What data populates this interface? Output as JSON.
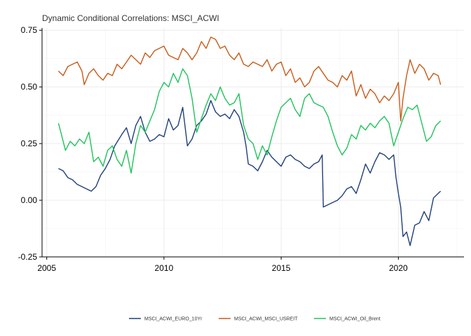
{
  "chart_data": {
    "type": "line",
    "title": "Dynamic Conditional Correlations: MSCI_ACWI",
    "xlabel": "",
    "ylabel": "",
    "xlim": [
      2004.8,
      2022.8
    ],
    "ylim": [
      -0.25,
      0.76
    ],
    "x_ticks": [
      2005,
      2010,
      2015,
      2020
    ],
    "x_tick_labels": [
      "2005",
      "2010",
      "2015",
      "2020"
    ],
    "y_ticks": [
      -0.25,
      0.0,
      0.25,
      0.5,
      0.75
    ],
    "y_tick_labels": [
      "-0.25",
      "0.00",
      "0.25",
      "0.50",
      "0.75"
    ],
    "grid": true,
    "legend_position": "bottom",
    "series": [
      {
        "name": "MSCI_ACWI_EURO_10Yr",
        "color": "#1f3f7a",
        "x": [
          2005.5,
          2005.7,
          2005.9,
          2006.1,
          2006.3,
          2006.5,
          2006.7,
          2006.9,
          2007.1,
          2007.3,
          2007.5,
          2007.7,
          2007.9,
          2008.2,
          2008.4,
          2008.6,
          2008.8,
          2009.0,
          2009.2,
          2009.4,
          2009.6,
          2009.8,
          2010.0,
          2010.2,
          2010.4,
          2010.6,
          2010.8,
          2011.0,
          2011.2,
          2011.4,
          2011.6,
          2011.8,
          2012.0,
          2012.2,
          2012.4,
          2012.6,
          2012.8,
          2013.0,
          2013.2,
          2013.4,
          2013.5,
          2013.6,
          2013.8,
          2014.0,
          2014.2,
          2014.4,
          2014.6,
          2014.8,
          2015.0,
          2015.2,
          2015.4,
          2015.6,
          2015.8,
          2016.0,
          2016.2,
          2016.4,
          2016.6,
          2016.75,
          2016.8,
          2017.0,
          2017.2,
          2017.4,
          2017.6,
          2017.8,
          2018.0,
          2018.2,
          2018.4,
          2018.6,
          2018.8,
          2019.0,
          2019.2,
          2019.4,
          2019.6,
          2019.8,
          2019.9,
          2020.0,
          2020.1,
          2020.2,
          2020.35,
          2020.5,
          2020.7,
          2020.9,
          2021.1,
          2021.3,
          2021.5,
          2021.7,
          2021.8
        ],
        "values": [
          0.14,
          0.13,
          0.1,
          0.09,
          0.07,
          0.06,
          0.05,
          0.04,
          0.06,
          0.11,
          0.14,
          0.18,
          0.24,
          0.29,
          0.32,
          0.25,
          0.33,
          0.37,
          0.3,
          0.26,
          0.27,
          0.29,
          0.28,
          0.36,
          0.31,
          0.33,
          0.41,
          0.24,
          0.27,
          0.33,
          0.35,
          0.38,
          0.44,
          0.39,
          0.37,
          0.38,
          0.36,
          0.4,
          0.37,
          0.3,
          0.24,
          0.16,
          0.15,
          0.13,
          0.17,
          0.22,
          0.19,
          0.17,
          0.15,
          0.19,
          0.2,
          0.18,
          0.17,
          0.15,
          0.14,
          0.16,
          0.17,
          0.2,
          -0.03,
          -0.02,
          -0.01,
          0.0,
          0.02,
          0.05,
          0.06,
          0.03,
          0.09,
          0.16,
          0.12,
          0.17,
          0.21,
          0.2,
          0.18,
          0.2,
          0.1,
          0.03,
          -0.03,
          -0.16,
          -0.14,
          -0.2,
          -0.11,
          -0.1,
          -0.05,
          -0.09,
          0.01,
          0.03,
          0.04
        ]
      },
      {
        "name": "MSCI_ACWI_MSCI_USREIT",
        "color": "#c85a18",
        "x": [
          2005.5,
          2005.7,
          2005.9,
          2006.1,
          2006.3,
          2006.5,
          2006.6,
          2006.8,
          2007.0,
          2007.2,
          2007.4,
          2007.6,
          2007.8,
          2008.0,
          2008.2,
          2008.4,
          2008.6,
          2008.8,
          2009.0,
          2009.2,
          2009.4,
          2009.6,
          2009.8,
          2010.0,
          2010.2,
          2010.4,
          2010.6,
          2010.8,
          2011.0,
          2011.2,
          2011.4,
          2011.6,
          2011.8,
          2012.0,
          2012.2,
          2012.4,
          2012.6,
          2012.8,
          2013.0,
          2013.2,
          2013.4,
          2013.6,
          2013.8,
          2014.0,
          2014.2,
          2014.4,
          2014.6,
          2014.8,
          2015.0,
          2015.2,
          2015.4,
          2015.6,
          2015.8,
          2016.0,
          2016.2,
          2016.4,
          2016.6,
          2016.8,
          2017.0,
          2017.2,
          2017.4,
          2017.6,
          2017.8,
          2018.0,
          2018.2,
          2018.4,
          2018.6,
          2018.8,
          2019.0,
          2019.2,
          2019.4,
          2019.6,
          2019.8,
          2020.0,
          2020.1,
          2020.2,
          2020.35,
          2020.5,
          2020.7,
          2020.9,
          2021.1,
          2021.3,
          2021.5,
          2021.7,
          2021.8
        ],
        "values": [
          0.57,
          0.55,
          0.59,
          0.6,
          0.61,
          0.57,
          0.51,
          0.56,
          0.58,
          0.55,
          0.53,
          0.56,
          0.55,
          0.6,
          0.58,
          0.61,
          0.64,
          0.62,
          0.6,
          0.65,
          0.63,
          0.66,
          0.67,
          0.68,
          0.64,
          0.63,
          0.62,
          0.67,
          0.65,
          0.62,
          0.65,
          0.7,
          0.67,
          0.72,
          0.71,
          0.67,
          0.68,
          0.64,
          0.62,
          0.65,
          0.6,
          0.59,
          0.61,
          0.6,
          0.59,
          0.62,
          0.57,
          0.6,
          0.61,
          0.55,
          0.58,
          0.52,
          0.54,
          0.5,
          0.52,
          0.57,
          0.59,
          0.56,
          0.53,
          0.52,
          0.5,
          0.55,
          0.53,
          0.57,
          0.46,
          0.51,
          0.45,
          0.49,
          0.47,
          0.43,
          0.46,
          0.44,
          0.47,
          0.52,
          0.35,
          0.45,
          0.55,
          0.62,
          0.56,
          0.6,
          0.58,
          0.53,
          0.56,
          0.55,
          0.51
        ]
      },
      {
        "name": "MSCI_ACWI_Oil_Brent",
        "color": "#1fc35a",
        "x": [
          2005.5,
          2005.6,
          2005.8,
          2006.0,
          2006.2,
          2006.4,
          2006.6,
          2006.8,
          2007.0,
          2007.2,
          2007.4,
          2007.6,
          2007.8,
          2008.0,
          2008.2,
          2008.4,
          2008.6,
          2008.8,
          2009.0,
          2009.2,
          2009.4,
          2009.6,
          2009.8,
          2010.0,
          2010.2,
          2010.4,
          2010.6,
          2010.8,
          2011.0,
          2011.2,
          2011.4,
          2011.6,
          2011.8,
          2012.0,
          2012.2,
          2012.4,
          2012.6,
          2012.8,
          2013.0,
          2013.2,
          2013.4,
          2013.6,
          2013.8,
          2014.0,
          2014.2,
          2014.4,
          2014.6,
          2014.8,
          2015.0,
          2015.2,
          2015.4,
          2015.6,
          2015.8,
          2016.0,
          2016.2,
          2016.4,
          2016.6,
          2016.8,
          2017.0,
          2017.2,
          2017.4,
          2017.6,
          2017.8,
          2018.0,
          2018.2,
          2018.4,
          2018.6,
          2018.8,
          2019.0,
          2019.2,
          2019.4,
          2019.6,
          2019.8,
          2020.0,
          2020.2,
          2020.4,
          2020.6,
          2020.8,
          2021.0,
          2021.2,
          2021.4,
          2021.6,
          2021.8
        ],
        "values": [
          0.34,
          0.3,
          0.22,
          0.26,
          0.24,
          0.27,
          0.25,
          0.3,
          0.17,
          0.19,
          0.15,
          0.22,
          0.24,
          0.18,
          0.15,
          0.22,
          0.12,
          0.25,
          0.33,
          0.3,
          0.35,
          0.4,
          0.48,
          0.52,
          0.5,
          0.56,
          0.52,
          0.58,
          0.55,
          0.45,
          0.3,
          0.36,
          0.42,
          0.47,
          0.44,
          0.5,
          0.45,
          0.42,
          0.43,
          0.47,
          0.33,
          0.27,
          0.25,
          0.18,
          0.24,
          0.2,
          0.28,
          0.35,
          0.41,
          0.43,
          0.45,
          0.4,
          0.37,
          0.45,
          0.47,
          0.43,
          0.42,
          0.41,
          0.37,
          0.3,
          0.24,
          0.2,
          0.23,
          0.29,
          0.27,
          0.33,
          0.31,
          0.34,
          0.32,
          0.35,
          0.37,
          0.34,
          0.24,
          0.3,
          0.36,
          0.41,
          0.4,
          0.42,
          0.34,
          0.26,
          0.28,
          0.33,
          0.35
        ]
      }
    ]
  }
}
